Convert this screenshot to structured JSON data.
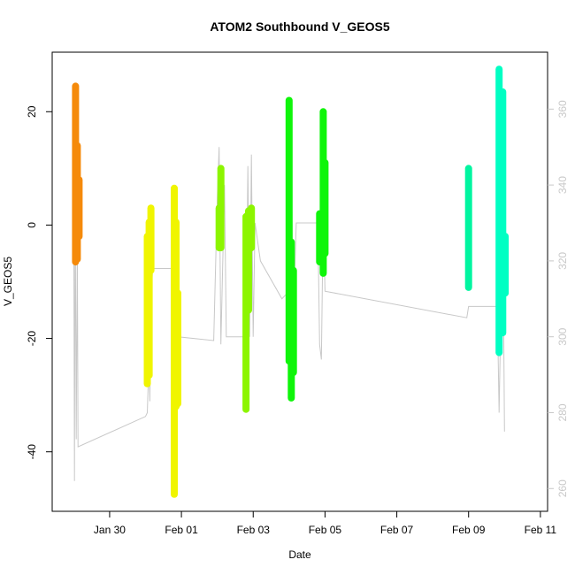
{
  "chart_data": {
    "type": "scatter",
    "title": "ATOM2 Southbound V_GEOS5",
    "xlabel": "Date",
    "ylabel": "V_GEOS5",
    "xlim": [
      -1.6,
      12.2
    ],
    "ylim": [
      -50.5,
      30.5
    ],
    "y2lim": [
      254,
      375
    ],
    "x_tick_values": [
      0,
      2,
      4,
      6,
      8,
      10,
      12
    ],
    "x_tick_labels": [
      "Jan 30",
      "Feb 01",
      "Feb 03",
      "Feb 05",
      "Feb 07",
      "Feb 09",
      "Feb 11"
    ],
    "y_ticks": [
      -40,
      -20,
      0,
      20
    ],
    "y2_ticks": [
      260,
      280,
      300,
      320,
      340,
      360
    ],
    "colors": {
      "axis": "#000000",
      "secondary_axis": "#c8c8c8",
      "altitude_line": "#c8c8c8"
    },
    "series": [
      {
        "color": "#f58a0a",
        "segments": [
          {
            "x": -0.95,
            "y_min": -6.5,
            "y_max": 24.5
          },
          {
            "x": -0.9,
            "y_min": -6.0,
            "y_max": 14.0
          },
          {
            "x": -0.85,
            "y_min": -2.0,
            "y_max": 8.0
          }
        ]
      },
      {
        "color": "#f0f500",
        "segments": [
          {
            "x": 1.05,
            "y_min": -28.0,
            "y_max": -2.0
          },
          {
            "x": 1.1,
            "y_min": -26.5,
            "y_max": 0.5
          },
          {
            "x": 1.15,
            "y_min": -8.0,
            "y_max": 3.0
          },
          {
            "x": 1.8,
            "y_min": -47.5,
            "y_max": 6.5
          },
          {
            "x": 1.85,
            "y_min": -32.0,
            "y_max": 0.5
          },
          {
            "x": 1.9,
            "y_min": -31.5,
            "y_max": -12.0
          }
        ]
      },
      {
        "color": "#8cf500",
        "segments": [
          {
            "x": 3.05,
            "y_min": -4.0,
            "y_max": 3.0
          },
          {
            "x": 3.1,
            "y_min": -4.0,
            "y_max": 10.0
          },
          {
            "x": 3.8,
            "y_min": -32.5,
            "y_max": 1.5
          },
          {
            "x": 3.87,
            "y_min": -15.0,
            "y_max": 2.5
          },
          {
            "x": 3.95,
            "y_min": -4.0,
            "y_max": 3.0
          }
        ]
      },
      {
        "color": "#0ff50a",
        "segments": [
          {
            "x": 5.0,
            "y_min": -24.0,
            "y_max": 22.0
          },
          {
            "x": 5.06,
            "y_min": -30.5,
            "y_max": -3.0
          },
          {
            "x": 5.12,
            "y_min": -26.0,
            "y_max": -8.0
          },
          {
            "x": 5.85,
            "y_min": -6.5,
            "y_max": 2.0
          },
          {
            "x": 5.95,
            "y_min": -8.5,
            "y_max": 20.0
          },
          {
            "x": 6.0,
            "y_min": -5.0,
            "y_max": 11.0
          }
        ]
      },
      {
        "color": "#00f5a0",
        "segments": [
          {
            "x": 10.0,
            "y_min": -11.0,
            "y_max": 10.0
          }
        ]
      },
      {
        "color": "#00ffc3",
        "segments": [
          {
            "x": 10.85,
            "y_min": -22.5,
            "y_max": 27.5
          },
          {
            "x": 10.95,
            "y_min": -19.0,
            "y_max": 23.5
          },
          {
            "x": 11.02,
            "y_min": -12.0,
            "y_max": -2.0
          }
        ]
      }
    ],
    "altitude_path": [
      [
        -1.0,
        341
      ],
      [
        -0.98,
        262
      ],
      [
        -0.96,
        340
      ],
      [
        -0.93,
        273
      ],
      [
        -0.9,
        325
      ],
      [
        -0.88,
        271
      ],
      [
        1.0,
        279
      ],
      [
        1.05,
        280
      ],
      [
        1.1,
        295
      ],
      [
        1.12,
        283
      ],
      [
        1.15,
        310
      ],
      [
        1.2,
        318
      ],
      [
        1.8,
        318
      ],
      [
        1.85,
        292
      ],
      [
        1.9,
        300
      ],
      [
        2.9,
        299
      ],
      [
        3.0,
        337
      ],
      [
        3.05,
        350
      ],
      [
        3.1,
        298
      ],
      [
        3.2,
        340
      ],
      [
        3.25,
        300
      ],
      [
        3.8,
        300
      ],
      [
        3.85,
        345
      ],
      [
        3.9,
        300
      ],
      [
        3.95,
        348
      ],
      [
        4.0,
        300
      ],
      [
        4.05,
        330
      ],
      [
        4.2,
        320
      ],
      [
        4.8,
        310
      ],
      [
        5.0,
        312
      ],
      [
        5.06,
        360
      ],
      [
        5.1,
        300
      ],
      [
        5.2,
        330
      ],
      [
        5.8,
        330
      ],
      [
        5.85,
        298
      ],
      [
        5.9,
        294
      ],
      [
        5.95,
        332
      ],
      [
        6.0,
        312
      ],
      [
        9.95,
        305
      ],
      [
        10.0,
        308
      ],
      [
        10.8,
        308
      ],
      [
        10.85,
        280
      ],
      [
        10.95,
        335
      ],
      [
        11.0,
        275
      ]
    ]
  }
}
